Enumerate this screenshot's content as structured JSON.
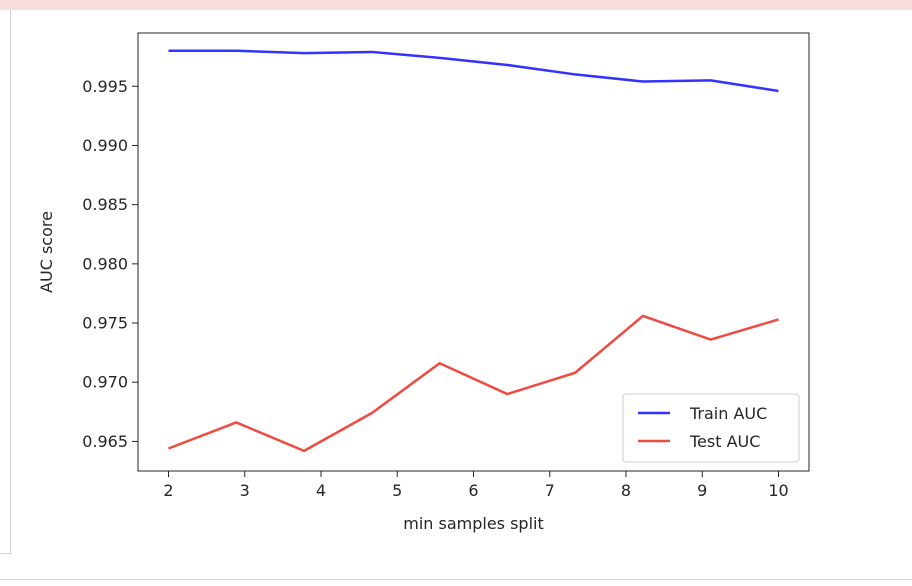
{
  "chart_data": {
    "type": "line",
    "title": "",
    "xlabel": "min samples split",
    "ylabel": "AUC score",
    "xlim": [
      1.6,
      10.4
    ],
    "ylim": [
      0.9625,
      0.9995
    ],
    "xticks": [
      2,
      3,
      4,
      5,
      6,
      7,
      8,
      9,
      10
    ],
    "yticks": [
      0.965,
      0.97,
      0.975,
      0.98,
      0.985,
      0.99,
      0.995
    ],
    "ytick_labels": [
      "0.965",
      "0.970",
      "0.975",
      "0.980",
      "0.985",
      "0.990",
      "0.995"
    ],
    "xtick_labels": [
      "2",
      "3",
      "4",
      "5",
      "6",
      "7",
      "8",
      "9",
      "10"
    ],
    "grid": false,
    "legend_position": "lower-right",
    "x": [
      2.0,
      2.889,
      3.778,
      4.667,
      5.556,
      6.444,
      7.333,
      8.222,
      9.111,
      10.0
    ],
    "series": [
      {
        "name": "Train AUC",
        "color": "#3333ff",
        "values": [
          0.998,
          0.998,
          0.9978,
          0.9979,
          0.9974,
          0.9968,
          0.996,
          0.9954,
          0.9955,
          0.9946
        ]
      },
      {
        "name": "Test AUC",
        "color": "#f04b41",
        "values": [
          0.9644,
          0.9666,
          0.9642,
          0.9674,
          0.9716,
          0.969,
          0.9708,
          0.9756,
          0.9736,
          0.9753
        ]
      }
    ]
  }
}
